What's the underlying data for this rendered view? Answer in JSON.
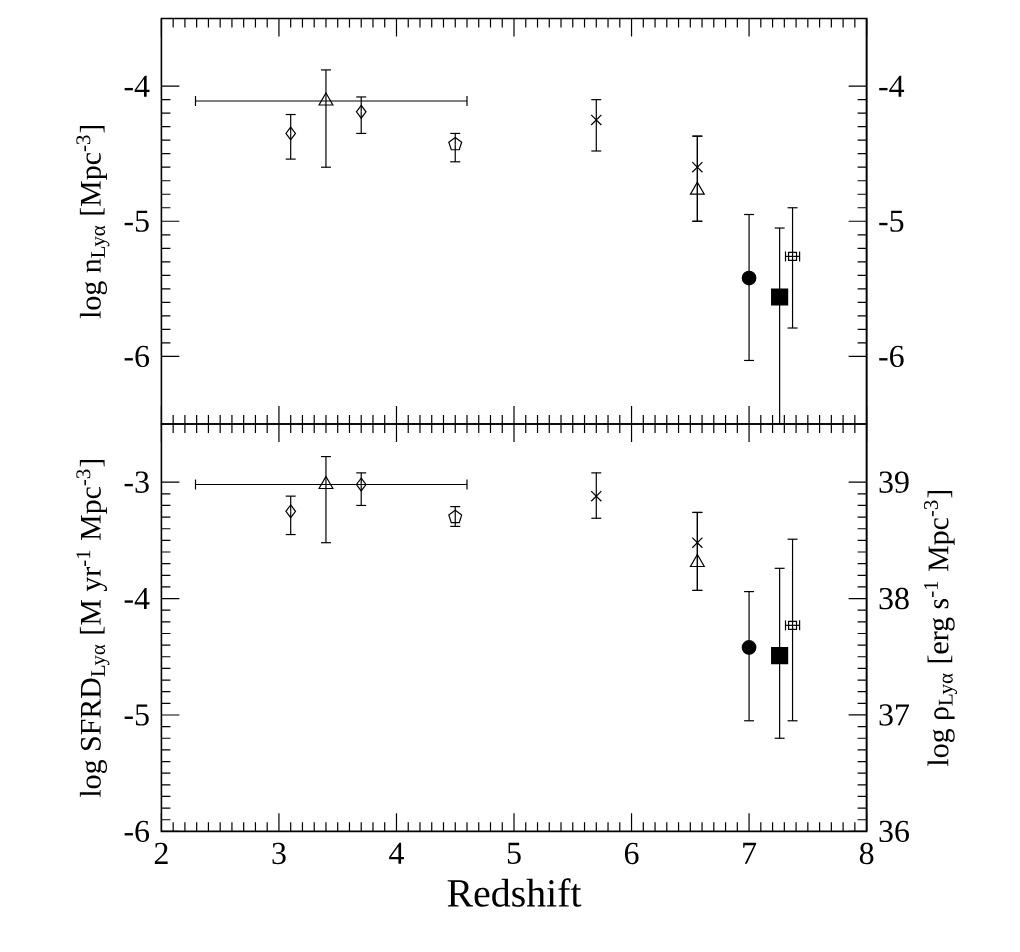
{
  "chart_data": [
    {
      "type": "scatter",
      "ylabel": "log n$_{Lyα}$ [Mpc$^{-3}$]",
      "xlim": [
        2,
        8
      ],
      "xticks": [
        2,
        3,
        4,
        5,
        6,
        7,
        8
      ],
      "ylim": [
        -6.5,
        -3.5
      ],
      "yticks": [
        -6,
        -5,
        -4
      ],
      "y2lim": [
        -6.5,
        -3.5
      ],
      "y2ticks": [
        -6,
        -5,
        -4
      ],
      "tick_labels": "y",
      "series": [
        {
          "color": "#000000",
          "marker": "diamond",
          "x": [
            3.1
          ],
          "values": [
            -4.35
          ],
          "errors": [
            [
              -4.54,
              -4.21
            ]
          ]
        },
        {
          "color": "#000000",
          "marker": "triangle down",
          "x": [
            3.4
          ],
          "values": [
            -4.11
          ],
          "errors": [
            [
              -4.6,
              -3.88
            ]
          ],
          "xerrors": [
            [
              2.29,
              4.6
            ]
          ]
        },
        {
          "color": "#000000",
          "marker": "diamond",
          "x": [
            3.7
          ],
          "values": [
            -4.19
          ],
          "errors": [
            [
              -4.35,
              -4.08
            ]
          ]
        },
        {
          "color": "#000000",
          "x": [
            4.5
          ],
          "values": [
            -4.43
          ],
          "errors": [
            [
              -4.56,
              -4.35
            ]
          ]
        },
        {
          "color": "#000000",
          "marker": "cross",
          "x": [
            5.7
          ],
          "values": [
            -4.25
          ],
          "errors": [
            [
              -4.48,
              -4.1
            ]
          ]
        },
        {
          "color": "#000000",
          "marker": "cross",
          "x": [
            6.56
          ],
          "values": [
            -4.6
          ],
          "errors": [
            [
              -5.0,
              -4.37
            ]
          ]
        },
        {
          "color": "#000000",
          "marker": "triangle",
          "x": [
            6.56
          ],
          "values": [
            -4.77
          ],
          "errors": [
            [
              -5.0,
              -4.37
            ]
          ]
        },
        {
          "color": "#000000",
          "marker": "circle",
          "x": [
            7.0
          ],
          "values": [
            -5.42
          ],
          "errors": [
            [
              -6.03,
              -4.95
            ]
          ]
        },
        {
          "color": "#000000",
          "marker": "square",
          "x": [
            7.26
          ],
          "values": [
            -5.56
          ],
          "errors": [
            [
              -6.5,
              -5.05
            ]
          ]
        },
        {
          "color": "#000000",
          "marker": "square dotted",
          "x": [
            7.37
          ],
          "values": [
            -5.26
          ],
          "errors": [
            [
              -5.79,
              -4.9
            ]
          ],
          "xerrors": [
            [
              7.31,
              7.43
            ]
          ]
        }
      ]
    },
    {
      "type": "scatter",
      "xlabel": "Redshift",
      "ylabel": "log SFRD$_{Lyα}$ [M yr$^{-1}$ Mpc$^{-3}$]",
      "y2label": "log ρ$_{Lyα}$ [erg s$^{-1}$ Mpc$^{-3}$]",
      "xlim": [
        2,
        8
      ],
      "xticks": [
        2,
        3,
        4,
        5,
        6,
        7,
        8
      ],
      "ylim": [
        -6,
        -2.5
      ],
      "yticks": [
        -6,
        -5,
        -4,
        -3
      ],
      "y2lim": [
        36,
        39.5
      ],
      "y2ticks": [
        36,
        37,
        38,
        39
      ],
      "series": [
        {
          "color": "#000000",
          "marker": "diamond",
          "x": [
            3.1
          ],
          "values": [
            -3.25
          ],
          "errors": [
            [
              -3.45,
              -3.12
            ]
          ]
        },
        {
          "color": "#000000",
          "marker": "triangle down",
          "x": [
            3.4
          ],
          "values": [
            -3.02
          ],
          "errors": [
            [
              -3.52,
              -2.78
            ]
          ],
          "xerrors": [
            [
              2.29,
              4.6
            ]
          ]
        },
        {
          "color": "#000000",
          "marker": "diamond",
          "x": [
            3.7
          ],
          "values": [
            -3.02
          ],
          "errors": [
            [
              -3.2,
              -2.92
            ]
          ]
        },
        {
          "color": "#000000",
          "x": [
            4.5
          ],
          "values": [
            -3.3
          ],
          "errors": [
            [
              -3.38,
              -3.21
            ]
          ]
        },
        {
          "color": "#000000",
          "marker": "cross",
          "x": [
            5.7
          ],
          "values": [
            -3.12
          ],
          "errors": [
            [
              -3.31,
              -2.92
            ]
          ]
        },
        {
          "color": "#000000",
          "marker": "cross",
          "x": [
            6.56
          ],
          "values": [
            -3.52
          ],
          "errors": [
            [
              -3.93,
              -3.26
            ]
          ]
        },
        {
          "color": "#000000",
          "marker": "triangle",
          "x": [
            6.56
          ],
          "values": [
            -3.69
          ],
          "errors": [
            [
              -3.93,
              -3.26
            ]
          ]
        },
        {
          "color": "#000000",
          "marker": "circle",
          "x": [
            7.0
          ],
          "values": [
            -4.42
          ],
          "errors": [
            [
              -5.05,
              -3.94
            ]
          ]
        },
        {
          "color": "#000000",
          "marker": "square",
          "x": [
            7.26
          ],
          "values": [
            -4.49
          ],
          "errors": [
            [
              -5.2,
              -3.74
            ]
          ]
        },
        {
          "color": "#000000",
          "marker": "square dotted",
          "x": [
            7.37
          ],
          "values": [
            -4.23
          ],
          "errors": [
            [
              -5.05,
              -3.49
            ]
          ],
          "xerrors": [
            [
              7.31,
              7.43
            ]
          ]
        }
      ]
    }
  ]
}
